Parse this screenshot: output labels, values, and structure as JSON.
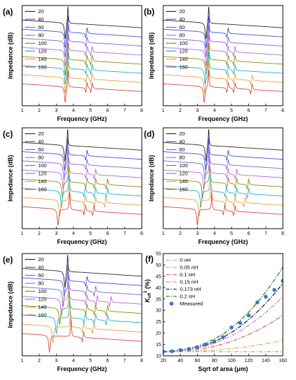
{
  "chart_data": [
    {
      "type": "line",
      "panel_label": "(a)",
      "xlabel": "Frequency (GHz)",
      "ylabel": "Impedance (dB)",
      "xlim": [
        1,
        8
      ],
      "x_ticks": [
        "1",
        "2",
        "3",
        "4",
        "5",
        "6",
        "7",
        "8"
      ],
      "legend": [
        "20",
        "40",
        "60",
        "80",
        "100",
        "120",
        "140",
        "160"
      ],
      "spur_ghz": [
        4.8,
        5.1
      ],
      "series": [
        {
          "name": "20",
          "color": "#2a2a2a",
          "base": 47,
          "res_ghz": 3.52,
          "ar_ghz": 3.68,
          "spurs": []
        },
        {
          "name": "40",
          "color": "#3b50d8",
          "base": 42,
          "res_ghz": 3.52,
          "ar_ghz": 3.68,
          "spurs": [
            4.8
          ]
        },
        {
          "name": "60",
          "color": "#7c62d6",
          "base": 37,
          "res_ghz": 3.52,
          "ar_ghz": 3.68,
          "spurs": [
            4.8
          ]
        },
        {
          "name": "80",
          "color": "#b36ad0",
          "base": 32,
          "res_ghz": 3.52,
          "ar_ghz": 3.68,
          "spurs": [
            4.8,
            5.1
          ]
        },
        {
          "name": "100",
          "color": "#8a8a10",
          "base": 27,
          "res_ghz": 3.52,
          "ar_ghz": 3.68,
          "spurs": [
            4.8,
            5.1
          ]
        },
        {
          "name": "120",
          "color": "#18b4c4",
          "base": 22,
          "res_ghz": 3.52,
          "ar_ghz": 3.68,
          "spurs": [
            4.8,
            5.1
          ]
        },
        {
          "name": "140",
          "color": "#e3a33a",
          "base": 17,
          "res_ghz": 3.52,
          "ar_ghz": 3.68,
          "spurs": [
            4.8,
            5.1
          ]
        },
        {
          "name": "160",
          "color": "#d14b3a",
          "base": 12,
          "res_ghz": 3.52,
          "ar_ghz": 3.68,
          "spurs": [
            4.8,
            5.1
          ]
        }
      ]
    },
    {
      "type": "line",
      "panel_label": "(b)",
      "xlabel": "Frequency (GHz)",
      "ylabel": "Impedance (dB)",
      "xlim": [
        1,
        8
      ],
      "x_ticks": [
        "1",
        "2",
        "3",
        "4",
        "5",
        "6",
        "7",
        "8"
      ],
      "legend": [
        "20",
        "40",
        "60",
        "80",
        "100",
        "120",
        "140",
        "160"
      ],
      "series": [
        {
          "name": "20",
          "color": "#2a2a2a",
          "base": 47,
          "res_ghz": 3.5,
          "ar_ghz": 3.66,
          "spurs": []
        },
        {
          "name": "40",
          "color": "#3b50d8",
          "base": 42,
          "res_ghz": 3.5,
          "ar_ghz": 3.66,
          "spurs": [
            4.8
          ]
        },
        {
          "name": "60",
          "color": "#7c62d6",
          "base": 37,
          "res_ghz": 3.5,
          "ar_ghz": 3.66,
          "spurs": [
            4.8
          ]
        },
        {
          "name": "80",
          "color": "#b36ad0",
          "base": 32,
          "res_ghz": 3.5,
          "ar_ghz": 3.66,
          "spurs": [
            4.8,
            5.2
          ]
        },
        {
          "name": "100",
          "color": "#8a8a10",
          "base": 27,
          "res_ghz": 3.5,
          "ar_ghz": 3.66,
          "spurs": [
            4.8,
            5.2
          ]
        },
        {
          "name": "120",
          "color": "#18b4c4",
          "base": 22,
          "res_ghz": 3.45,
          "ar_ghz": 3.66,
          "spurs": [
            4.8,
            5.2
          ]
        },
        {
          "name": "140",
          "color": "#e3a33a",
          "base": 17,
          "res_ghz": 3.42,
          "ar_ghz": 3.66,
          "spurs": [
            4.8,
            5.2,
            6.2
          ]
        },
        {
          "name": "160",
          "color": "#d14b3a",
          "base": 12,
          "res_ghz": 3.4,
          "ar_ghz": 3.66,
          "spurs": [
            4.8,
            5.2,
            6.2
          ]
        }
      ]
    },
    {
      "type": "line",
      "panel_label": "(c)",
      "xlabel": "Frequency (GHz)",
      "ylabel": "Impedance (dB)",
      "xlim": [
        1,
        8
      ],
      "x_ticks": [
        "1",
        "2",
        "3",
        "4",
        "5",
        "6",
        "7",
        "8"
      ],
      "legend": [
        "20",
        "40",
        "60",
        "80",
        "100",
        "120",
        "140",
        "160"
      ],
      "series": [
        {
          "name": "20",
          "color": "#2a2a2a",
          "base": 47,
          "res_ghz": 3.5,
          "ar_ghz": 3.66,
          "spurs": []
        },
        {
          "name": "40",
          "color": "#3b50d8",
          "base": 42,
          "res_ghz": 3.48,
          "ar_ghz": 3.66,
          "spurs": [
            4.8
          ]
        },
        {
          "name": "60",
          "color": "#7c62d6",
          "base": 37,
          "res_ghz": 3.45,
          "ar_ghz": 3.68,
          "spurs": [
            4.8
          ]
        },
        {
          "name": "80",
          "color": "#b36ad0",
          "base": 32,
          "res_ghz": 3.4,
          "ar_ghz": 3.7,
          "spurs": [
            4.8,
            5.3
          ]
        },
        {
          "name": "100",
          "color": "#8a8a10",
          "base": 27,
          "res_ghz": 3.35,
          "ar_ghz": 3.72,
          "spurs": [
            4.8,
            5.3,
            6.0
          ]
        },
        {
          "name": "120",
          "color": "#18b4c4",
          "base": 22,
          "res_ghz": 3.3,
          "ar_ghz": 3.74,
          "spurs": [
            4.7,
            5.3,
            6.0
          ]
        },
        {
          "name": "140",
          "color": "#e3a33a",
          "base": 17,
          "res_ghz": 3.2,
          "ar_ghz": 3.76,
          "spurs": [
            4.7,
            5.3,
            5.9
          ]
        },
        {
          "name": "160",
          "color": "#d14b3a",
          "base": 12,
          "res_ghz": 3.1,
          "ar_ghz": 3.78,
          "spurs": [
            4.7,
            5.2
          ]
        }
      ]
    },
    {
      "type": "line",
      "panel_label": "(d)",
      "xlabel": "Frequency (GHz)",
      "ylabel": "Impedance (dB)",
      "xlim": [
        1,
        8
      ],
      "x_ticks": [
        "1",
        "2",
        "3",
        "4",
        "5",
        "6",
        "7",
        "8"
      ],
      "legend": [
        "20",
        "40",
        "60",
        "80",
        "100",
        "120",
        "140",
        "160"
      ],
      "series": [
        {
          "name": "20",
          "color": "#2a2a2a",
          "base": 47,
          "res_ghz": 3.5,
          "ar_ghz": 3.66,
          "spurs": []
        },
        {
          "name": "40",
          "color": "#3b50d8",
          "base": 42,
          "res_ghz": 3.48,
          "ar_ghz": 3.66,
          "spurs": [
            4.8
          ]
        },
        {
          "name": "60",
          "color": "#7c62d6",
          "base": 37,
          "res_ghz": 3.44,
          "ar_ghz": 3.68,
          "spurs": [
            4.8
          ]
        },
        {
          "name": "80",
          "color": "#b36ad0",
          "base": 32,
          "res_ghz": 3.38,
          "ar_ghz": 3.7,
          "spurs": [
            4.8,
            5.3
          ]
        },
        {
          "name": "100",
          "color": "#8a8a10",
          "base": 27,
          "res_ghz": 3.3,
          "ar_ghz": 3.72,
          "spurs": [
            4.8,
            5.3,
            6.0
          ]
        },
        {
          "name": "120",
          "color": "#18b4c4",
          "base": 22,
          "res_ghz": 3.2,
          "ar_ghz": 3.76,
          "spurs": [
            4.7,
            5.3,
            6.0
          ]
        },
        {
          "name": "140",
          "color": "#e3a33a",
          "base": 17,
          "res_ghz": 3.1,
          "ar_ghz": 3.8,
          "spurs": [
            4.7,
            5.2,
            5.8
          ]
        },
        {
          "name": "160",
          "color": "#d14b3a",
          "base": 12,
          "res_ghz": 3.0,
          "ar_ghz": 3.84,
          "spurs": [
            4.6,
            5.2
          ]
        }
      ]
    },
    {
      "type": "line",
      "panel_label": "(e)",
      "xlabel": "Frequency (GHz)",
      "ylabel": "Impedance (dB)",
      "xlim": [
        1,
        8
      ],
      "x_ticks": [
        "1",
        "2",
        "3",
        "4",
        "5",
        "6",
        "7",
        "8"
      ],
      "legend": [
        "20",
        "40",
        "60",
        "80",
        "100",
        "120",
        "140",
        "160"
      ],
      "series": [
        {
          "name": "20",
          "color": "#2a2a2a",
          "base": 47,
          "res_ghz": 3.5,
          "ar_ghz": 3.66,
          "spurs": []
        },
        {
          "name": "40",
          "color": "#3b50d8",
          "base": 42,
          "res_ghz": 3.46,
          "ar_ghz": 3.68,
          "spurs": [
            4.8
          ]
        },
        {
          "name": "60",
          "color": "#7c62d6",
          "base": 37,
          "res_ghz": 3.4,
          "ar_ghz": 3.7,
          "spurs": [
            4.8,
            5.3
          ]
        },
        {
          "name": "80",
          "color": "#b36ad0",
          "base": 32,
          "res_ghz": 3.3,
          "ar_ghz": 3.72,
          "spurs": [
            4.8,
            5.4,
            6.2
          ]
        },
        {
          "name": "100",
          "color": "#8a8a10",
          "base": 27,
          "res_ghz": 3.2,
          "ar_ghz": 3.75,
          "spurs": [
            4.8,
            5.3,
            6.0
          ]
        },
        {
          "name": "120",
          "color": "#18b4c4",
          "base": 22,
          "res_ghz": 3.0,
          "ar_ghz": 3.78,
          "spurs": [
            4.7,
            5.3,
            6.0
          ]
        },
        {
          "name": "140",
          "color": "#e3a33a",
          "base": 17,
          "res_ghz": 2.8,
          "ar_ghz": 3.82,
          "spurs": [
            4.6,
            5.2
          ]
        },
        {
          "name": "160",
          "color": "#d14b3a",
          "base": 12,
          "res_ghz": 2.6,
          "ar_ghz": 3.86,
          "spurs": [
            4.6
          ]
        }
      ]
    },
    {
      "type": "line",
      "panel_label": "(f)",
      "xlabel": "Sqrt of area (μm)",
      "ylabel": "K",
      "ylabel_sub": "eff",
      "ylabel_sup": "2",
      "ylabel_unit": "(%)",
      "xlim": [
        20,
        160
      ],
      "ylim": [
        10,
        55
      ],
      "x_ticks": [
        20,
        40,
        60,
        80,
        100,
        120,
        140,
        160
      ],
      "y_ticks": [
        10,
        15,
        20,
        25,
        30,
        35,
        40,
        45,
        50,
        55
      ],
      "x": [
        20,
        30,
        40,
        50,
        60,
        70,
        80,
        90,
        100,
        110,
        120,
        130,
        140,
        150,
        160
      ],
      "series": [
        {
          "name": "0 nH",
          "color": "#b0b0b0",
          "values": [
            11.8,
            11.8,
            11.8,
            11.8,
            11.8,
            11.8,
            11.8,
            11.8,
            11.8,
            11.8,
            11.8,
            11.8,
            11.8,
            11.8,
            11.8
          ]
        },
        {
          "name": "0.05 nH",
          "color": "#e0b36a",
          "values": [
            11.8,
            11.8,
            11.9,
            12.0,
            12.1,
            12.3,
            12.5,
            12.8,
            13.2,
            13.6,
            14.1,
            14.7,
            15.3,
            16.0,
            16.8
          ]
        },
        {
          "name": "0.1 nH",
          "color": "#e0685c",
          "values": [
            11.8,
            11.9,
            12.1,
            12.4,
            12.8,
            13.4,
            14.2,
            15.2,
            16.4,
            17.8,
            19.4,
            21.2,
            23.2,
            25.4,
            27.8
          ]
        },
        {
          "name": "0.15 nH",
          "color": "#c48be0",
          "values": [
            11.8,
            12.0,
            12.3,
            12.8,
            13.5,
            14.4,
            15.6,
            17.1,
            18.9,
            21.0,
            23.4,
            26.1,
            29.1,
            32.4,
            36.0
          ]
        },
        {
          "name": "0.173 nH",
          "color": "#333333",
          "values": [
            11.8,
            12.0,
            12.4,
            13.0,
            13.8,
            14.9,
            16.3,
            18.1,
            20.3,
            22.9,
            25.9,
            29.3,
            33.1,
            37.3,
            41.9
          ]
        },
        {
          "name": "0.2 nH",
          "color": "#2e8b2e",
          "values": [
            11.8,
            12.1,
            12.6,
            13.3,
            14.3,
            15.6,
            17.4,
            19.6,
            22.3,
            25.5,
            29.2,
            33.4,
            38.1,
            43.3,
            49.0
          ]
        }
      ],
      "measured": {
        "name": "Measured",
        "color": "#3a6fd8",
        "x": [
          20,
          30,
          40,
          50,
          60,
          70,
          80,
          90,
          100,
          110,
          120,
          130,
          140,
          150,
          160
        ],
        "values": [
          11.8,
          12.0,
          12.5,
          13.0,
          13.8,
          15.0,
          16.3,
          18.2,
          22.5,
          24.5,
          27.8,
          33.5,
          36.0,
          39.0,
          43.0
        ]
      }
    }
  ]
}
